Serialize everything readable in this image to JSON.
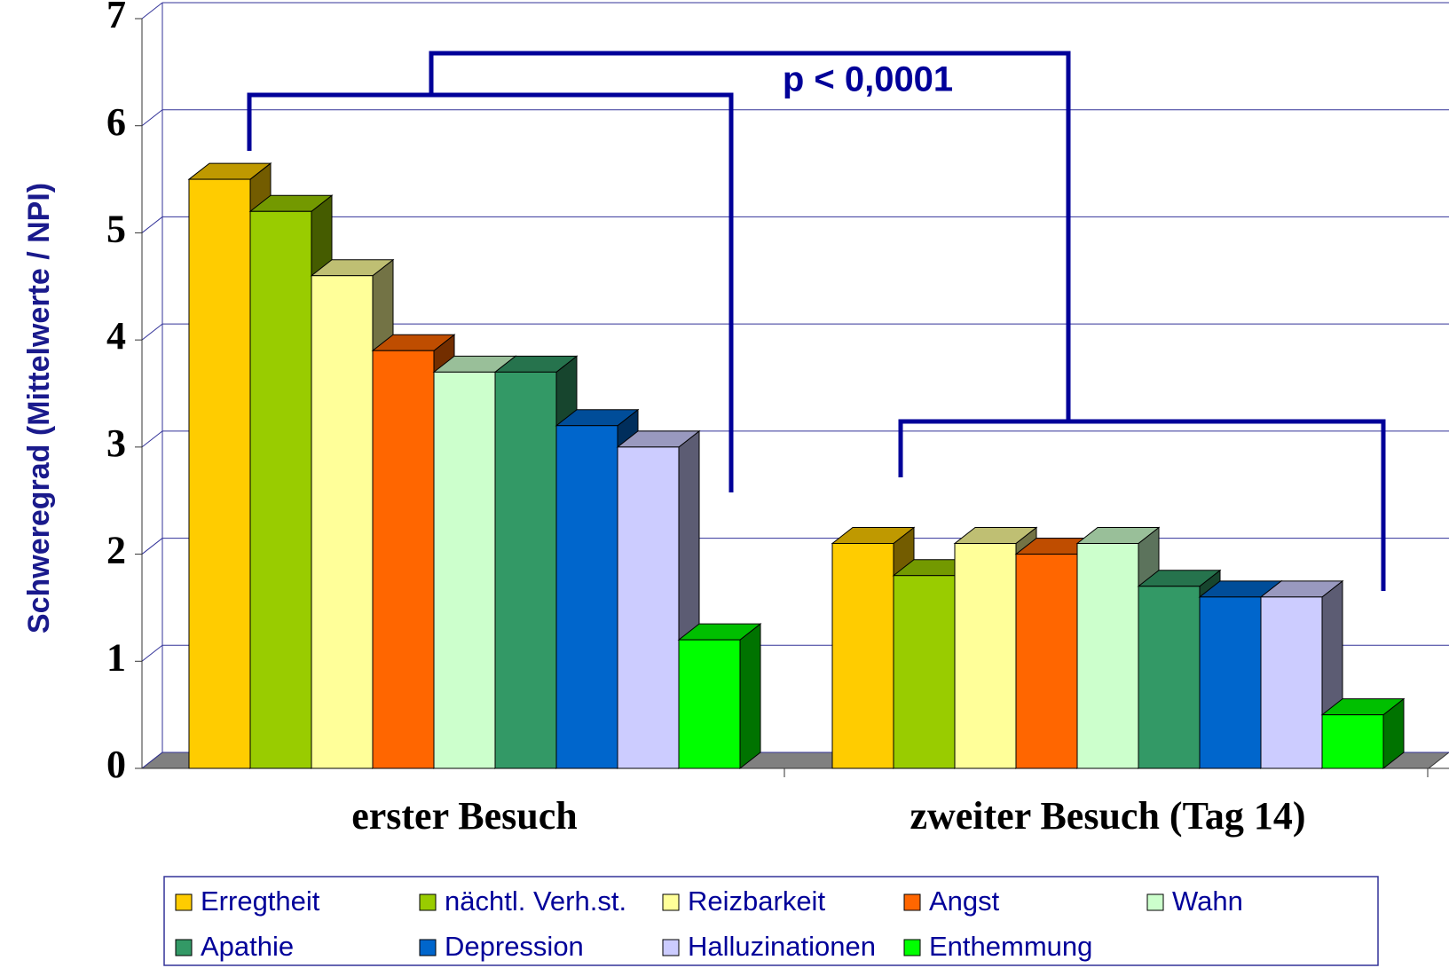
{
  "chart_data": {
    "type": "bar3d",
    "y_label": "Schweregrad (Mittelwerte / NPI)",
    "annotation": "p < 0,0001",
    "categories": [
      "erster Besuch",
      "zweiter Besuch (Tag 14)"
    ],
    "series": [
      {
        "name": "Erregtheit",
        "color": "#FFCC00",
        "values": [
          5.5,
          2.1
        ]
      },
      {
        "name": "nächtl. Verh.st.",
        "color": "#99CC00",
        "values": [
          5.2,
          1.8
        ]
      },
      {
        "name": "Reizbarkeit",
        "color": "#FFFF99",
        "values": [
          4.6,
          2.1
        ]
      },
      {
        "name": "Angst",
        "color": "#FF6600",
        "values": [
          3.9,
          2.0
        ]
      },
      {
        "name": "Wahn",
        "color": "#CCFFCC",
        "values": [
          3.7,
          2.1
        ]
      },
      {
        "name": "Apathie",
        "color": "#339966",
        "values": [
          3.7,
          1.7
        ]
      },
      {
        "name": "Depression",
        "color": "#0066CC",
        "values": [
          3.2,
          1.6
        ]
      },
      {
        "name": "Halluzinationen",
        "color": "#CCCCFF",
        "values": [
          3.0,
          1.6
        ]
      },
      {
        "name": "Enthemmung",
        "color": "#00FF00",
        "values": [
          1.2,
          0.5
        ]
      }
    ],
    "ylim": [
      0,
      7
    ],
    "yticks": [
      0,
      1,
      2,
      3,
      4,
      5,
      6,
      7
    ],
    "grid": true
  }
}
